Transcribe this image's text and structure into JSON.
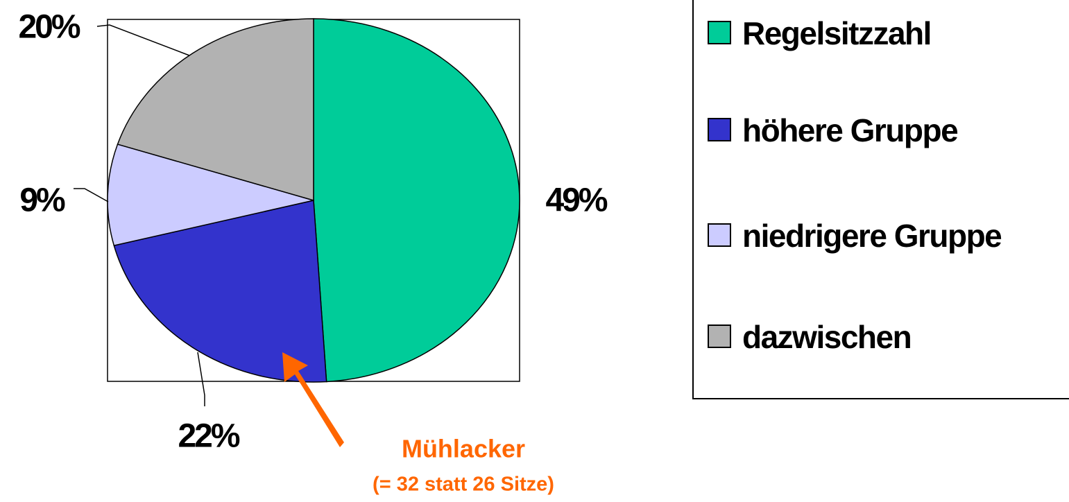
{
  "chart_data": {
    "type": "pie",
    "categories": [
      "Regelsitzzahl",
      "höhere Gruppe",
      "niedrigere Gruppe",
      "dazwischen"
    ],
    "values": [
      49,
      22,
      9,
      20
    ],
    "value_labels": [
      "49%",
      "22%",
      "9%",
      "20%"
    ],
    "colors": [
      "#00cc99",
      "#3333cc",
      "#ccccff",
      "#b2b2b2"
    ],
    "annotations": [
      "Mühlacker",
      "(= 32 statt 26 Sitze)"
    ]
  }
}
